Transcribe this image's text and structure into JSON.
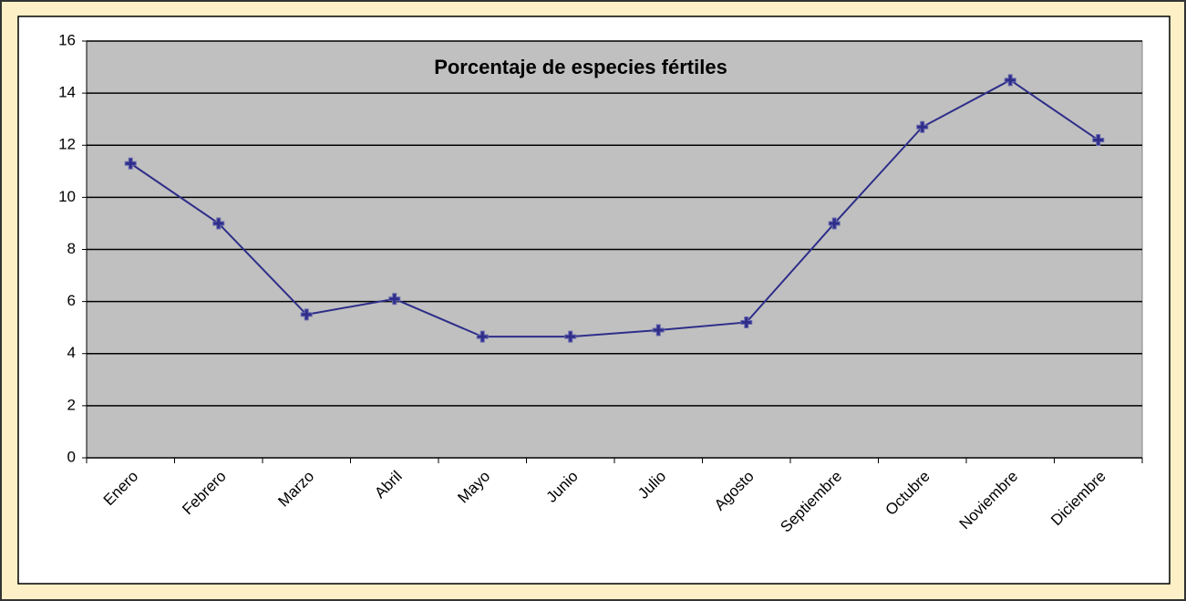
{
  "chart_data": {
    "type": "line",
    "title": "Porcentaje de especies fértiles",
    "categories": [
      "Enero",
      "Febrero",
      "Marzo",
      "Abril",
      "Mayo",
      "Junio",
      "Julio",
      "Agosto",
      "Septiembre",
      "Octubre",
      "Noviembre",
      "Diciembre"
    ],
    "values": [
      11.3,
      9.0,
      5.5,
      6.1,
      4.65,
      4.65,
      4.9,
      5.2,
      9.0,
      12.7,
      14.5,
      12.2
    ],
    "color": "#2e2e8a",
    "ylim": [
      0,
      16
    ],
    "yticks": [
      0,
      2,
      4,
      6,
      8,
      10,
      12,
      14,
      16
    ],
    "grid": true
  }
}
